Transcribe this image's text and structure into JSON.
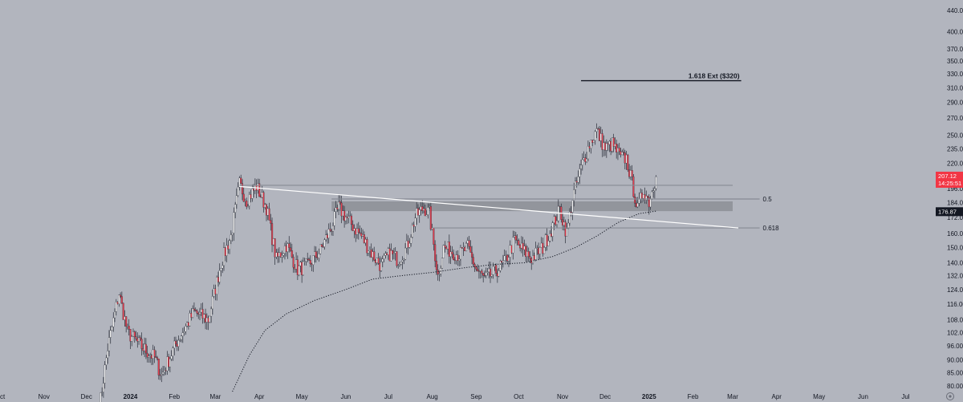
{
  "colors": {
    "background": "#b2b5be",
    "up_candle": "#f0f0f0",
    "down_candle": "#e04050",
    "ma_line": "#131722",
    "trendline": "#ffffff",
    "level_line": "#878b94",
    "zone": "#8c8f97",
    "price_tag": "#f23645",
    "ma_tag": "#131722"
  },
  "chart_data": {
    "type": "candlestick",
    "y_scale": "log",
    "ylim": [
      78,
      455
    ],
    "y_ticks": [
      "440.00",
      "400.00",
      "370.00",
      "350.00",
      "330.00",
      "310.00",
      "290.00",
      "270.00",
      "250.00",
      "235.00",
      "220.00",
      "196.00",
      "184.00",
      "172.00",
      "160.00",
      "150.00",
      "140.00",
      "132.00",
      "124.00",
      "116.00",
      "108.00",
      "102.00",
      "96.00",
      "90.00",
      "85.00",
      "80.00"
    ],
    "x_ticks": [
      "Oct",
      "Nov",
      "Dec",
      "2024",
      "Feb",
      "Mar",
      "Apr",
      "May",
      "Jun",
      "Jul",
      "Aug",
      "Sep",
      "Oct",
      "Nov",
      "Dec",
      "2025",
      "Feb",
      "Mar",
      "Apr",
      "May",
      "Jun",
      "Jul"
    ],
    "bold_x_ticks": [
      "2024",
      "2025"
    ],
    "x_range": [
      "2023-10-01",
      "2025-07-20"
    ],
    "price_anchors": [
      [
        "2023-12-10",
        72
      ],
      [
        "2023-12-16",
        95
      ],
      [
        "2023-12-24",
        122
      ],
      [
        "2023-12-30",
        102
      ],
      [
        "2024-01-10",
        95
      ],
      [
        "2024-01-18",
        91
      ],
      [
        "2024-01-23",
        84
      ],
      [
        "2024-02-03",
        98
      ],
      [
        "2024-02-15",
        112
      ],
      [
        "2024-02-25",
        108
      ],
      [
        "2024-03-05",
        140
      ],
      [
        "2024-03-12",
        158
      ],
      [
        "2024-03-18",
        200
      ],
      [
        "2024-03-23",
        186
      ],
      [
        "2024-03-30",
        198
      ],
      [
        "2024-04-06",
        180
      ],
      [
        "2024-04-13",
        142
      ],
      [
        "2024-04-20",
        152
      ],
      [
        "2024-04-28",
        136
      ],
      [
        "2024-05-05",
        138
      ],
      [
        "2024-05-14",
        148
      ],
      [
        "2024-05-22",
        165
      ],
      [
        "2024-05-27",
        180
      ],
      [
        "2024-06-04",
        168
      ],
      [
        "2024-06-12",
        158
      ],
      [
        "2024-06-20",
        145
      ],
      [
        "2024-06-26",
        138
      ],
      [
        "2024-07-02",
        146
      ],
      [
        "2024-07-08",
        142
      ],
      [
        "2024-07-14",
        150
      ],
      [
        "2024-07-20",
        172
      ],
      [
        "2024-07-26",
        180
      ],
      [
        "2024-07-30",
        175
      ],
      [
        "2024-08-05",
        132
      ],
      [
        "2024-08-09",
        150
      ],
      [
        "2024-08-14",
        148
      ],
      [
        "2024-08-20",
        145
      ],
      [
        "2024-08-26",
        150
      ],
      [
        "2024-09-01",
        136
      ],
      [
        "2024-09-07",
        130
      ],
      [
        "2024-09-14",
        134
      ],
      [
        "2024-09-21",
        140
      ],
      [
        "2024-09-28",
        155
      ],
      [
        "2024-10-04",
        148
      ],
      [
        "2024-10-10",
        143
      ],
      [
        "2024-10-18",
        150
      ],
      [
        "2024-10-26",
        168
      ],
      [
        "2024-10-30",
        178
      ],
      [
        "2024-11-04",
        160
      ],
      [
        "2024-11-08",
        188
      ],
      [
        "2024-11-15",
        220
      ],
      [
        "2024-11-20",
        240
      ],
      [
        "2024-11-25",
        255
      ],
      [
        "2024-12-01",
        235
      ],
      [
        "2024-12-06",
        240
      ],
      [
        "2024-12-12",
        225
      ],
      [
        "2024-12-16",
        225
      ],
      [
        "2024-12-21",
        195
      ],
      [
        "2024-12-24",
        178
      ],
      [
        "2024-12-28",
        195
      ],
      [
        "2025-01-01",
        185
      ],
      [
        "2025-01-06",
        207
      ]
    ],
    "moving_average": [
      [
        "2024-03-13",
        78
      ],
      [
        "2024-03-25",
        92
      ],
      [
        "2024-04-05",
        103
      ],
      [
        "2024-04-20",
        111
      ],
      [
        "2024-05-10",
        118
      ],
      [
        "2024-06-01",
        124
      ],
      [
        "2024-06-20",
        130
      ],
      [
        "2024-07-10",
        132
      ],
      [
        "2024-08-01",
        134
      ],
      [
        "2024-08-25",
        137
      ],
      [
        "2024-09-15",
        139
      ],
      [
        "2024-10-05",
        140
      ],
      [
        "2024-10-25",
        144
      ],
      [
        "2024-11-10",
        150
      ],
      [
        "2024-11-25",
        158
      ],
      [
        "2024-12-10",
        168
      ],
      [
        "2024-12-25",
        175
      ],
      [
        "2025-01-06",
        177
      ]
    ],
    "trendline": [
      [
        "2024-03-18",
        198
      ],
      [
        "2025-03-05",
        164
      ]
    ],
    "levels": [
      {
        "label": "",
        "price": 199,
        "from": "2024-03-18",
        "to": "2025-03-01"
      },
      {
        "label": "0.5",
        "price": 187,
        "from": "2024-05-22",
        "to": "2025-03-20"
      },
      {
        "label": "0.618",
        "price": 164,
        "from": "2024-08-01",
        "to": "2025-03-20"
      }
    ],
    "zone": {
      "from": "2024-05-22",
      "to": "2025-03-01",
      "low": 177,
      "high": 185
    },
    "target": {
      "label": "1.618 Ext ($320)",
      "price": 320,
      "from": "2024-11-14",
      "to": "2025-03-07"
    },
    "current_price": {
      "value": "207.12",
      "timer": "14:25:51",
      "price": 207.12
    },
    "ma_value": {
      "value": "176.87",
      "price": 176.87
    }
  },
  "ui": {
    "tradingview_logo": "tv-logo"
  }
}
